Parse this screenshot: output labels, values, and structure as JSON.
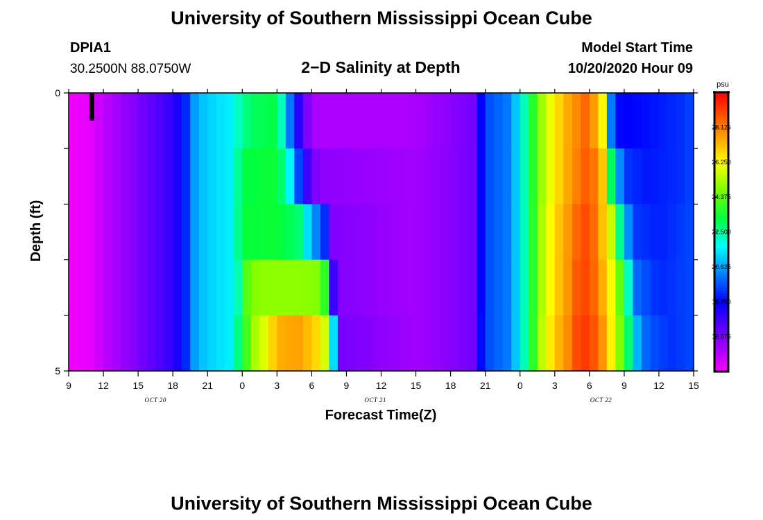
{
  "header": {
    "title": "University of Southern Mississippi Ocean Cube",
    "station_id": "DPIA1",
    "coordinates": "30.2500N 88.0750W",
    "subtitle": "2−D Salinity at Depth",
    "model_start_label": "Model Start Time",
    "model_start_value": "10/20/2020 Hour 09"
  },
  "footer": {
    "title": "University of Southern Mississippi Ocean Cube"
  },
  "chart_data": {
    "type": "heatmap",
    "title": "2−D Salinity at Depth",
    "xlabel": "Forecast Time(Z)",
    "ylabel": "Depth (ft)",
    "x_tick_labels": [
      "9",
      "12",
      "15",
      "18",
      "21",
      "0",
      "3",
      "6",
      "9",
      "12",
      "15",
      "18",
      "21",
      "0",
      "3",
      "6",
      "9",
      "12",
      "15"
    ],
    "x_tick_hours": [
      0,
      3,
      6,
      9,
      12,
      15,
      18,
      21,
      24,
      27,
      30,
      33,
      36,
      39,
      42,
      45,
      48,
      51,
      54
    ],
    "date_labels": [
      {
        "text": "OCT  20",
        "hour": 7.5
      },
      {
        "text": "OCT  21",
        "hour": 26.5
      },
      {
        "text": "OCT  22",
        "hour": 46
      }
    ],
    "x_range_hours": [
      0,
      54
    ],
    "y_range_ft": [
      0,
      5
    ],
    "y_tick_labels": [
      "0",
      "5"
    ],
    "y_ticks_ft": [
      0,
      1,
      2,
      3,
      4,
      5
    ],
    "depth_levels_ft": [
      0,
      1,
      2,
      3,
      4
    ],
    "time_step_hours": 0.75,
    "colorbar": {
      "unit": "psu",
      "min": 15.0,
      "max": 30.0,
      "labels": [
        "28.125",
        "26.250",
        "24.375",
        "22.500",
        "20.625",
        "18.750",
        "16.875"
      ],
      "label_values": [
        28.125,
        26.25,
        24.375,
        22.5,
        20.625,
        18.75,
        16.875
      ]
    },
    "salinity_profile": {
      "description": "salinity (psu) vs forecast hour at each depth level",
      "depth_0ft": [
        [
          0,
          15.2
        ],
        [
          1.5,
          15.3
        ],
        [
          2,
          15.4
        ],
        [
          3,
          15.9
        ],
        [
          6,
          16.9
        ],
        [
          9,
          18.0
        ],
        [
          10,
          19.0
        ],
        [
          11,
          20.8
        ],
        [
          12,
          21.2
        ],
        [
          14,
          21.6
        ],
        [
          15,
          22.6
        ],
        [
          16,
          23.0
        ],
        [
          18,
          23.2
        ],
        [
          18.5,
          22.0
        ],
        [
          19.5,
          19.0
        ],
        [
          20,
          17.8
        ],
        [
          21,
          16.2
        ],
        [
          23,
          16.2
        ],
        [
          30,
          16.2
        ],
        [
          35,
          17.0
        ],
        [
          35.5,
          18.5
        ],
        [
          36,
          19.6
        ],
        [
          38,
          20.2
        ],
        [
          39,
          21.6
        ],
        [
          40,
          23.5
        ],
        [
          41,
          25.4
        ],
        [
          42,
          26.5
        ],
        [
          43,
          27.4
        ],
        [
          44,
          28.0
        ],
        [
          44.5,
          28.6
        ],
        [
          45,
          28.0
        ],
        [
          46,
          27.2
        ],
        [
          46.5,
          23.8
        ],
        [
          47,
          19.0
        ],
        [
          48,
          18.7
        ],
        [
          50,
          18.9
        ],
        [
          53,
          19.3
        ],
        [
          54,
          19.6
        ]
      ],
      "depth_1ft": [
        [
          0,
          15.2
        ],
        [
          1.5,
          15.3
        ],
        [
          2,
          15.4
        ],
        [
          3,
          15.9
        ],
        [
          6,
          16.9
        ],
        [
          9,
          18.0
        ],
        [
          10,
          19.0
        ],
        [
          11,
          20.8
        ],
        [
          12,
          21.2
        ],
        [
          14,
          21.6
        ],
        [
          15,
          23.2
        ],
        [
          18,
          23.4
        ],
        [
          19,
          22.0
        ],
        [
          20,
          19.2
        ],
        [
          21,
          17.0
        ],
        [
          22,
          16.6
        ],
        [
          30,
          16.3
        ],
        [
          35,
          17.0
        ],
        [
          35.5,
          18.5
        ],
        [
          36,
          19.6
        ],
        [
          38,
          20.2
        ],
        [
          39,
          21.6
        ],
        [
          40,
          23.5
        ],
        [
          41,
          25.4
        ],
        [
          42,
          26.5
        ],
        [
          43,
          27.4
        ],
        [
          44,
          28.2
        ],
        [
          45,
          28.8
        ],
        [
          46,
          27.4
        ],
        [
          46.5,
          26.0
        ],
        [
          47,
          22.0
        ],
        [
          48,
          19.4
        ],
        [
          50,
          19.0
        ],
        [
          53,
          19.3
        ],
        [
          54,
          19.6
        ]
      ],
      "depth_2ft": [
        [
          0,
          15.2
        ],
        [
          1.5,
          15.3
        ],
        [
          2,
          15.4
        ],
        [
          3,
          15.9
        ],
        [
          6,
          16.9
        ],
        [
          9,
          18.0
        ],
        [
          10,
          19.0
        ],
        [
          11,
          20.8
        ],
        [
          12,
          21.2
        ],
        [
          14,
          21.6
        ],
        [
          15,
          23.3
        ],
        [
          18,
          23.4
        ],
        [
          20,
          22.8
        ],
        [
          21,
          20.5
        ],
        [
          22,
          20.0
        ],
        [
          22.5,
          17.0
        ],
        [
          23,
          16.8
        ],
        [
          30,
          16.3
        ],
        [
          35,
          17.0
        ],
        [
          35.5,
          18.5
        ],
        [
          36,
          19.6
        ],
        [
          38,
          20.2
        ],
        [
          39,
          21.6
        ],
        [
          40,
          23.5
        ],
        [
          41,
          25.6
        ],
        [
          42,
          26.8
        ],
        [
          43,
          27.6
        ],
        [
          44,
          28.6
        ],
        [
          45,
          29.0
        ],
        [
          46,
          27.4
        ],
        [
          47,
          25.4
        ],
        [
          48,
          21.0
        ],
        [
          49,
          19.4
        ],
        [
          51,
          19.1
        ],
        [
          54,
          19.6
        ]
      ],
      "depth_3ft": [
        [
          0,
          15.2
        ],
        [
          1.5,
          15.3
        ],
        [
          2,
          15.4
        ],
        [
          3,
          15.9
        ],
        [
          6,
          16.9
        ],
        [
          9,
          18.0
        ],
        [
          10,
          19.0
        ],
        [
          11,
          20.8
        ],
        [
          12,
          21.2
        ],
        [
          14,
          21.6
        ],
        [
          15,
          22.8
        ],
        [
          15.5,
          24.8
        ],
        [
          17,
          25.0
        ],
        [
          20,
          25.0
        ],
        [
          22,
          24.8
        ],
        [
          22.5,
          21.0
        ],
        [
          23,
          16.8
        ],
        [
          30,
          16.3
        ],
        [
          35,
          17.0
        ],
        [
          35.5,
          18.5
        ],
        [
          36,
          19.6
        ],
        [
          38,
          20.2
        ],
        [
          39,
          21.6
        ],
        [
          40,
          23.5
        ],
        [
          41,
          25.6
        ],
        [
          42,
          26.8
        ],
        [
          43,
          27.6
        ],
        [
          44,
          28.8
        ],
        [
          45,
          29.0
        ],
        [
          46,
          27.6
        ],
        [
          47,
          26.0
        ],
        [
          48,
          23.5
        ],
        [
          49,
          20.0
        ],
        [
          51,
          19.2
        ],
        [
          54,
          19.6
        ]
      ],
      "depth_4ft": [
        [
          0,
          15.2
        ],
        [
          1.5,
          15.3
        ],
        [
          2,
          15.4
        ],
        [
          3,
          15.9
        ],
        [
          6,
          16.9
        ],
        [
          9,
          18.0
        ],
        [
          10,
          19.0
        ],
        [
          11,
          20.8
        ],
        [
          12,
          21.2
        ],
        [
          14,
          21.6
        ],
        [
          15,
          23.4
        ],
        [
          16,
          25.2
        ],
        [
          17,
          26.0
        ],
        [
          18,
          27.4
        ],
        [
          20,
          27.6
        ],
        [
          22,
          26.4
        ],
        [
          22.5,
          24.0
        ],
        [
          23,
          20.5
        ],
        [
          23.5,
          17.0
        ],
        [
          30,
          16.3
        ],
        [
          35,
          17.0
        ],
        [
          35.5,
          18.6
        ],
        [
          36,
          19.6
        ],
        [
          38,
          20.2
        ],
        [
          39,
          21.6
        ],
        [
          40,
          23.5
        ],
        [
          41,
          25.8
        ],
        [
          42,
          27.0
        ],
        [
          43,
          27.8
        ],
        [
          44,
          29.0
        ],
        [
          45,
          29.2
        ],
        [
          46,
          28.0
        ],
        [
          47,
          26.2
        ],
        [
          48,
          24.0
        ],
        [
          49,
          21.0
        ],
        [
          50,
          19.8
        ],
        [
          52,
          19.3
        ],
        [
          54,
          19.6
        ]
      ]
    }
  }
}
